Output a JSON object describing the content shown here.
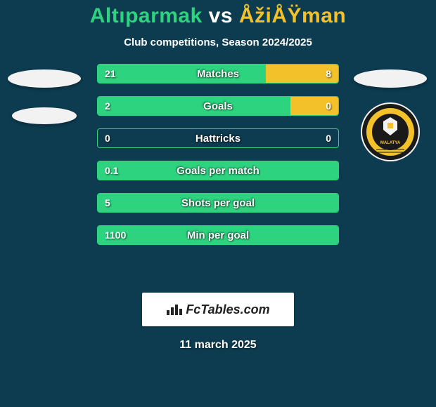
{
  "page": {
    "background_color": "#0d3b4f",
    "title": {
      "left": "Altıparmak",
      "vs": "vs",
      "right": "ÅžiÅŸman",
      "left_color": "#2dd37f",
      "right_color": "#f3c22b",
      "vs_color": "#ffffff"
    },
    "subtitle": "Club competitions, Season 2024/2025",
    "subtitle_color": "#ffffff"
  },
  "colors": {
    "left_fill": "#2dd37f",
    "right_fill": "#f3c22b",
    "border_left_dominant": "#2dd37f",
    "border_right_dominant": "#f3c22b",
    "track": "#0d3b4f"
  },
  "stats": [
    {
      "label": "Matches",
      "left_val": "21",
      "right_val": "8",
      "left_pct": 70,
      "right_pct": 30
    },
    {
      "label": "Goals",
      "left_val": "2",
      "right_val": "0",
      "left_pct": 80,
      "right_pct": 20
    },
    {
      "label": "Hattricks",
      "left_val": "0",
      "right_val": "0",
      "left_pct": 0,
      "right_pct": 0
    },
    {
      "label": "Goals per match",
      "left_val": "0.1",
      "right_val": "",
      "left_pct": 100,
      "right_pct": 0
    },
    {
      "label": "Shots per goal",
      "left_val": "5",
      "right_val": "",
      "left_pct": 100,
      "right_pct": 0
    },
    {
      "label": "Min per goal",
      "left_val": "1100",
      "right_val": "",
      "left_pct": 100,
      "right_pct": 0
    }
  ],
  "footer": {
    "brand": "FcTables.com",
    "date": "11 march 2025"
  },
  "badge": {
    "ring_outer": "#1a1a1a",
    "ring_yellow": "#f3c22b",
    "center": "#1a1a1a",
    "text": "MALATYA"
  }
}
